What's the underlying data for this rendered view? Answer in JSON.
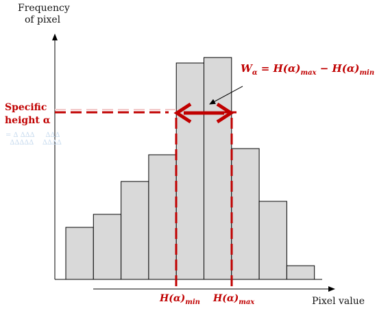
{
  "axes": {
    "y_title_line1": "Frequency",
    "y_title_line2": "of pixel",
    "x_title": "Pixel value"
  },
  "annotations": {
    "specific_height_line1": "Specific",
    "specific_height_line2": "height α",
    "formula_w": "W",
    "formula_w_sub": "α",
    "formula_eq": " = H(α)",
    "formula_max_sub": "max",
    "formula_minus": " − H(α)",
    "formula_min_sub": "min",
    "h_min_main": "H(α)",
    "h_min_sub": "min",
    "h_max_main": "H(α)",
    "h_max_sub": "max",
    "ghost_text": "= ∆ ∆∆∆     ∆∆∆\n  ∆∆∆∆∆    ∆∆∆∆"
  },
  "histogram": {
    "bar_fill": "#d9d9d9",
    "bar_stroke": "#000000",
    "bar_heights": [
      76,
      95,
      143,
      182,
      316,
      324,
      191,
      114,
      20
    ],
    "alpha_level": 244,
    "h_min_bin_edge": 4,
    "h_max_bin_edge": 6
  },
  "colors": {
    "accent": "#c00000",
    "axis": "#000000"
  }
}
